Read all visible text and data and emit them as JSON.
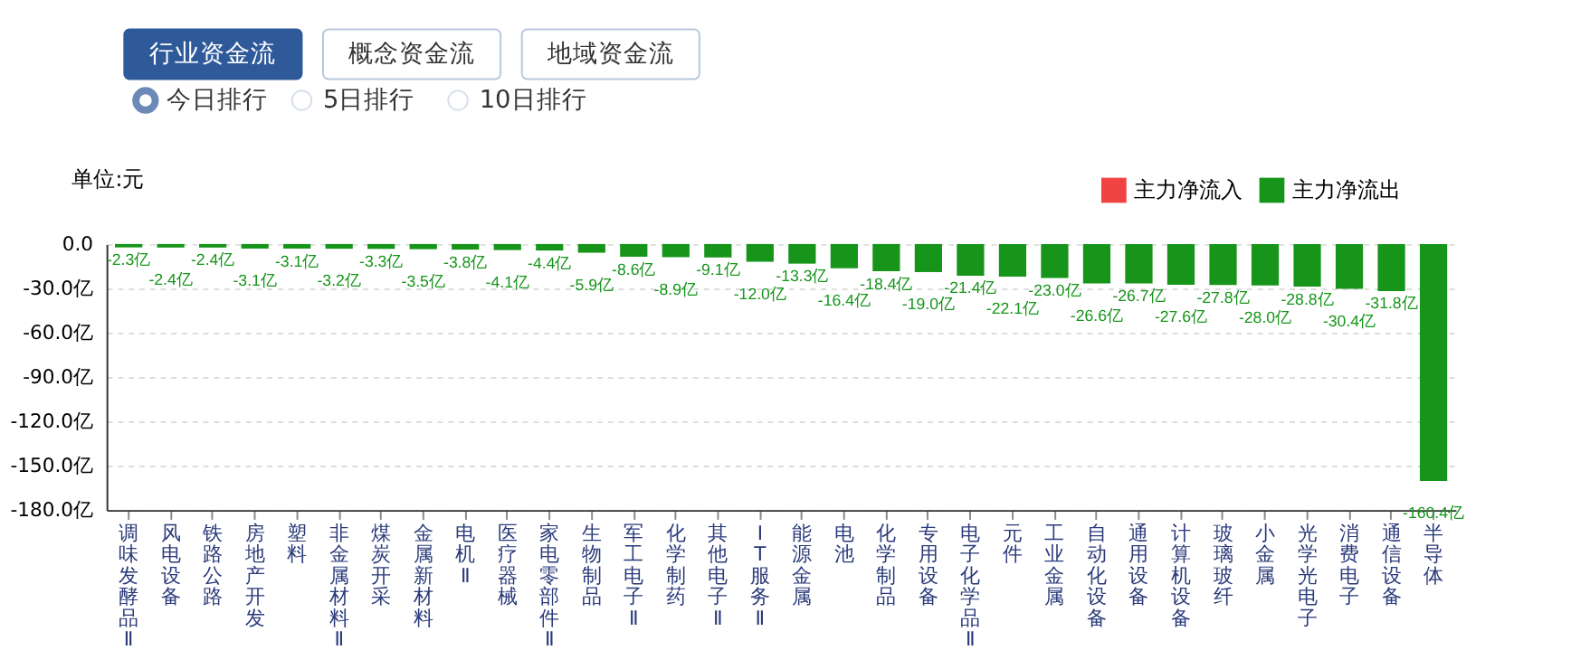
{
  "chart_data": {
    "type": "bar",
    "ylabel": "单位:元",
    "annotations": [
      "行业资金流",
      "概念资金流",
      "地域资金流",
      "今日排行",
      "5日排行",
      "10日排行"
    ],
    "categories": [
      "调味发酵品Ⅱ",
      "风电设备",
      "铁路公路",
      "房地产开发",
      "塑料",
      "非金属材料Ⅱ",
      "煤炭开采",
      "金属新材料",
      "电机Ⅱ",
      "医疗器械",
      "家电零部件Ⅱ",
      "生物制品",
      "军工电子Ⅱ",
      "化学制药",
      "其他电子Ⅱ",
      "IT服务Ⅱ",
      "能源金属",
      "电池",
      "化学制品",
      "专用设备",
      "电子化学品Ⅱ",
      "元件",
      "工业金属",
      "自动化设备",
      "通用设备",
      "计算机设备",
      "玻璃玻纤",
      "小金属",
      "光学光电子",
      "消费电子",
      "通信设备",
      "半导体"
    ],
    "series": [
      {
        "name": "主力净流入",
        "color": "#f04444",
        "values": [
          null,
          null,
          null,
          null,
          null,
          null,
          null,
          null,
          null,
          null,
          null,
          null,
          null,
          null,
          null,
          null,
          null,
          null,
          null,
          null,
          null,
          null,
          null,
          null,
          null,
          null,
          null,
          null,
          null,
          null,
          null,
          null
        ]
      },
      {
        "name": "主力净流出",
        "color": "#16951a",
        "values": [
          -2.3,
          -2.4,
          -2.4,
          -3.1,
          -3.1,
          -3.2,
          -3.3,
          -3.5,
          -3.8,
          -4.1,
          -4.4,
          -5.9,
          -8.6,
          -8.9,
          -9.1,
          -12.0,
          -13.3,
          -16.4,
          -18.4,
          -19.0,
          -21.4,
          -22.1,
          -23.0,
          -26.6,
          -26.7,
          -27.6,
          -27.8,
          -28.0,
          -28.8,
          -30.4,
          -31.8,
          -160.4
        ],
        "value_labels": [
          "-2.3亿",
          "-2.4亿",
          "-2.4亿",
          "-3.1亿",
          "-3.1亿",
          "-3.2亿",
          "-3.3亿",
          "-3.5亿",
          "-3.8亿",
          "-4.1亿",
          "-4.4亿",
          "-5.9亿",
          "-8.6亿",
          "-8.9亿",
          "-9.1亿",
          "-12.0亿",
          "-13.3亿",
          "-16.4亿",
          "-18.4亿",
          "-19.0亿",
          "-21.4亿",
          "-22.1亿",
          "-23.0亿",
          "-26.6亿",
          "-26.7亿",
          "-27.6亿",
          "-27.8亿",
          "-28.0亿",
          "-28.8亿",
          "-30.4亿",
          "-31.8亿",
          "-160.4亿"
        ]
      }
    ],
    "ylim": [
      -180,
      0
    ],
    "yticks": [
      {
        "value": 0,
        "label": "0.0"
      },
      {
        "value": -30,
        "label": "-30.0亿"
      },
      {
        "value": -60,
        "label": "-60.0亿"
      },
      {
        "value": -90,
        "label": "-90.0亿"
      },
      {
        "value": -120,
        "label": "-120.0亿"
      },
      {
        "value": -150,
        "label": "-150.0亿"
      },
      {
        "value": -180,
        "label": "-180.0亿"
      }
    ],
    "grid": "y",
    "legend": "top right"
  }
}
